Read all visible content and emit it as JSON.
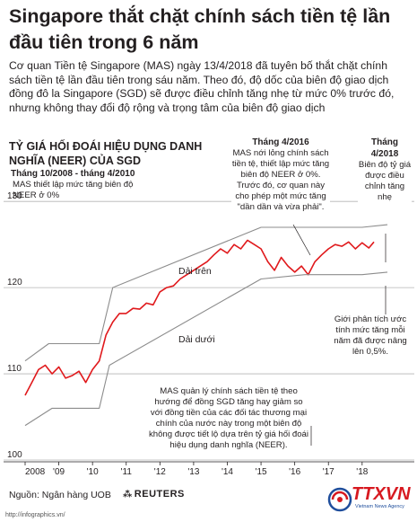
{
  "headline": "Singapore thắt chặt chính sách tiền tệ lần đầu tiên trong 6 năm",
  "intro": "Cơ quan Tiền tệ Singapore (MAS) ngày 13/4/2018 đã tuyên bố thắt chặt chính sách tiền tệ lần đầu tiên trong sáu năm. Theo đó, độ dốc của biên độ giao dịch đồng đô la Singapore (SGD) sẽ được điều chỉnh tăng nhẹ từ mức 0% trước đó, nhưng không thay đổi độ rộng và trọng tâm của biên độ giao dịch",
  "annotations": {
    "a1_title": "Tháng 10/2008 - tháng 4/2010",
    "a1_text": "MAS thiết lập mức tăng biên độ NEER ở 0%",
    "a2_title": "Tháng 4/2016",
    "a2_text": "MAS nới lỏng chính sách tiền tệ, thiết lập mức tăng biên độ NEER ở 0%. Trước đó, cơ quan này cho phép một mức tăng \"dần dần và vừa phải\".",
    "a3_title": "Tháng 4/2018",
    "a3_text": "Biên độ tỷ giá được điều chỉnh tăng nhẹ",
    "upper_band": "Dải trên",
    "lower_band": "Dải dưới",
    "slope_note": "Giới phân tích ước tính mức tăng mỗi năm đã được nâng lên 0,5%.",
    "mas_note": "MAS quản lý chính sách tiền tệ theo hướng để đồng SGD tăng hay giảm so với đồng tiền của các đối tác thương mại chính của nước này trong một biên độ không được tiết lộ dựa trên tỷ giá hối đoái hiệu dụng danh nghĩa (NEER)."
  },
  "footer": {
    "source": "Nguồn: Ngân hàng UOB",
    "reuters": "REUTERS",
    "url": "http://infographics.vn/",
    "logo": "TTXVN",
    "logo_sub": "Vietnam News Agency"
  },
  "colors": {
    "series": "#e0191c",
    "band": "#8c8c8c",
    "grid": "#b4b4b4",
    "text": "#231f20",
    "logo": "#d71920"
  },
  "chart_data": {
    "type": "line",
    "title": "TỶ GIÁ HỐI ĐOÁI HIỆU DỤNG DANH NGHĨA (NEER) CỦA SGD",
    "xlabel": "",
    "ylabel": "",
    "xlim": [
      2008,
      2018.75
    ],
    "ylim": [
      100,
      132
    ],
    "y_ticks": [
      100,
      110,
      120,
      130
    ],
    "x_ticks": [
      {
        "label": "2008",
        "x": 2008
      },
      {
        "label": "'09",
        "x": 2009
      },
      {
        "label": "'10",
        "x": 2010
      },
      {
        "label": "'11",
        "x": 2011
      },
      {
        "label": "'12",
        "x": 2012
      },
      {
        "label": "'13",
        "x": 2013
      },
      {
        "label": "'14",
        "x": 2014
      },
      {
        "label": "'15",
        "x": 2015
      },
      {
        "label": "'16",
        "x": 2016
      },
      {
        "label": "'17",
        "x": 2017
      },
      {
        "label": "'18",
        "x": 2018
      }
    ],
    "grid": "horizontal",
    "series": [
      {
        "x": [
          2008.0,
          2008.2,
          2008.4,
          2008.6,
          2008.8,
          2009.0,
          2009.2,
          2009.4,
          2009.6,
          2009.8,
          2010.0,
          2010.2,
          2010.4,
          2010.6,
          2010.8,
          2011.0,
          2011.2,
          2011.4,
          2011.6,
          2011.8,
          2012.0,
          2012.2,
          2012.4,
          2012.6,
          2012.8,
          2013.0,
          2013.2,
          2013.4,
          2013.6,
          2013.8,
          2014.0,
          2014.2,
          2014.4,
          2014.6,
          2014.8,
          2015.0,
          2015.2,
          2015.4,
          2015.6,
          2015.8,
          2016.0,
          2016.2,
          2016.4,
          2016.6,
          2016.8,
          2017.0,
          2017.2,
          2017.4,
          2017.6,
          2017.8,
          2018.0,
          2018.2,
          2018.35
        ],
        "values": [
          107.5,
          109.0,
          110.5,
          111.0,
          110.0,
          110.8,
          109.5,
          109.8,
          110.3,
          109.0,
          110.5,
          111.5,
          114.5,
          116.0,
          117.0,
          117.0,
          117.6,
          117.5,
          118.2,
          118.0,
          119.5,
          120.0,
          120.2,
          121.0,
          121.5,
          122.0,
          122.5,
          123.0,
          123.8,
          124.5,
          124.0,
          125.0,
          124.5,
          125.5,
          125.0,
          124.5,
          123.0,
          122.0,
          123.5,
          122.5,
          121.8,
          122.5,
          121.5,
          123.0,
          123.8,
          124.5,
          125.0,
          124.8,
          125.3,
          124.5,
          125.2,
          124.6,
          125.3
        ]
      },
      {
        "name": "Dải trên",
        "x": [
          2008.0,
          2008.7,
          2010.2,
          2010.6,
          2015.0,
          2016.3,
          2018.0,
          2018.75
        ],
        "values": [
          111.5,
          113.5,
          113.5,
          120.0,
          127.0,
          127.0,
          127.0,
          127.3
        ]
      },
      {
        "name": "Dải dưới",
        "x": [
          2008.0,
          2008.8,
          2010.2,
          2010.5,
          2015.0,
          2016.3,
          2018.0,
          2018.75
        ],
        "values": [
          104.0,
          106.0,
          106.0,
          111.0,
          121.0,
          121.5,
          121.5,
          121.8
        ]
      }
    ]
  }
}
